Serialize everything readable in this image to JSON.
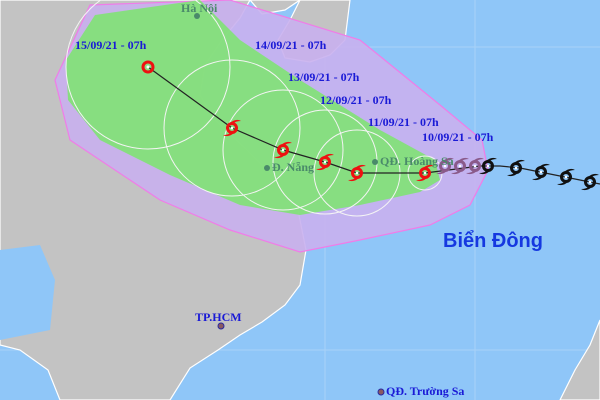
{
  "colors": {
    "sea": "#8fc6f8",
    "land": "#c3c3c3",
    "cone": "#c9b0ee",
    "cone_border": "#f07ce8",
    "danger_zone": "#84e07a",
    "track": "#222222",
    "forecast_storm": "#ee1111",
    "past_storm": "#111111"
  },
  "sea_label": "Biển Đông",
  "places": [
    {
      "name": "Hà Nội",
      "icon": "city-dot-icon"
    },
    {
      "name": "Đ. Nẵng",
      "icon": "city-dot-icon"
    },
    {
      "name": "QĐ. Hoàng Sa",
      "icon": "island-dot-icon"
    },
    {
      "name": "TP.HCM",
      "icon": "city-dot-icon"
    },
    {
      "name": "QĐ. Trường Sa",
      "icon": "island-dot-icon"
    }
  ],
  "forecast_points": [
    {
      "time": "10/09/21 - 07h",
      "icon": "typhoon-icon"
    },
    {
      "time": "11/09/21 - 07h",
      "icon": "typhoon-icon"
    },
    {
      "time": "12/09/21 - 07h",
      "icon": "typhoon-icon"
    },
    {
      "time": "13/09/21 - 07h",
      "icon": "typhoon-icon"
    },
    {
      "time": "14/09/21 - 07h",
      "icon": "typhoon-icon"
    },
    {
      "time": "15/09/21 - 07h",
      "icon": "low-pressure-icon"
    }
  ]
}
